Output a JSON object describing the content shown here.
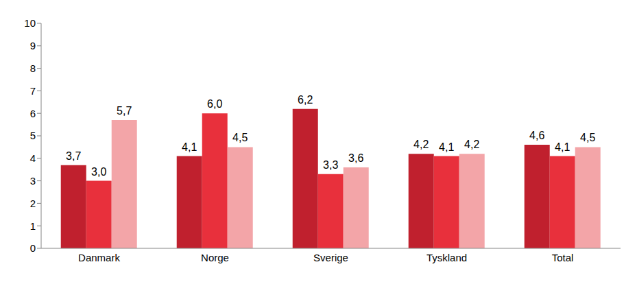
{
  "chart_data": {
    "type": "bar",
    "categories": [
      "Danmark",
      "Norge",
      "Sverige",
      "Tyskland",
      "Total"
    ],
    "series": [
      {
        "color": "#C0202E",
        "values": [
          3.7,
          4.1,
          6.2,
          4.2,
          4.6
        ],
        "value_labels": [
          "3,7",
          "4,1",
          "6,2",
          "4,2",
          "4,6"
        ]
      },
      {
        "color": "#E8303C",
        "values": [
          3.0,
          6.0,
          3.3,
          4.1,
          4.1
        ],
        "value_labels": [
          "3,0",
          "6,0",
          "3,3",
          "4,1",
          "4,1"
        ]
      },
      {
        "color": "#F3A5A8",
        "values": [
          5.7,
          4.5,
          3.6,
          4.2,
          4.5
        ],
        "value_labels": [
          "5,7",
          "4,5",
          "3,6",
          "4,2",
          "4,5"
        ]
      }
    ],
    "ylim": [
      0,
      10
    ],
    "yticks": [
      0,
      1,
      2,
      3,
      4,
      5,
      6,
      7,
      8,
      9,
      10
    ],
    "grid": false,
    "data_labels": true
  }
}
